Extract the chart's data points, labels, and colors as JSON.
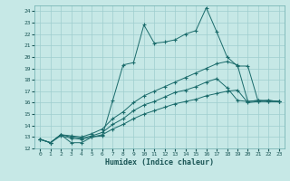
{
  "xlabel": "Humidex (Indice chaleur)",
  "xlim": [
    -0.5,
    23.5
  ],
  "ylim": [
    12,
    24.5
  ],
  "xticks": [
    0,
    1,
    2,
    3,
    4,
    5,
    6,
    7,
    8,
    9,
    10,
    11,
    12,
    13,
    14,
    15,
    16,
    17,
    18,
    19,
    20,
    21,
    22,
    23
  ],
  "yticks": [
    12,
    13,
    14,
    15,
    16,
    17,
    18,
    19,
    20,
    21,
    22,
    23,
    24
  ],
  "bg_color": "#c6e8e6",
  "line_color": "#1a6b6b",
  "grid_color": "#9ecece",
  "line1_x": [
    0,
    1,
    2,
    3,
    4,
    5,
    6,
    7,
    8,
    9,
    10,
    11,
    12,
    13,
    14,
    15,
    16,
    17,
    18,
    19,
    20,
    21,
    22,
    23
  ],
  "line1_y": [
    12.8,
    12.5,
    13.2,
    12.5,
    12.5,
    13.0,
    13.1,
    16.2,
    19.3,
    19.5,
    22.8,
    21.2,
    21.3,
    21.5,
    22.0,
    22.3,
    24.3,
    22.2,
    20.0,
    19.2,
    19.2,
    16.1,
    16.2,
    16.1
  ],
  "line2_x": [
    0,
    1,
    2,
    3,
    4,
    5,
    6,
    7,
    8,
    9,
    10,
    11,
    12,
    13,
    14,
    15,
    16,
    17,
    18,
    19,
    20,
    21,
    22,
    23
  ],
  "line2_y": [
    12.8,
    12.5,
    13.2,
    13.1,
    13.0,
    13.3,
    13.7,
    14.6,
    15.2,
    16.0,
    16.6,
    17.0,
    17.4,
    17.8,
    18.2,
    18.6,
    19.0,
    19.4,
    19.6,
    19.3,
    16.1,
    16.2,
    16.2,
    16.1
  ],
  "line3_x": [
    0,
    1,
    2,
    3,
    4,
    5,
    6,
    7,
    8,
    9,
    10,
    11,
    12,
    13,
    14,
    15,
    16,
    17,
    18,
    19,
    20,
    21,
    22,
    23
  ],
  "line3_y": [
    12.8,
    12.5,
    13.1,
    12.9,
    12.8,
    13.0,
    13.2,
    13.7,
    14.1,
    14.6,
    15.0,
    15.3,
    15.6,
    15.9,
    16.1,
    16.3,
    16.6,
    16.8,
    17.0,
    17.1,
    16.0,
    16.1,
    16.1,
    16.1
  ],
  "line4_x": [
    0,
    1,
    2,
    3,
    4,
    5,
    6,
    7,
    8,
    9,
    10,
    11,
    12,
    13,
    14,
    15,
    16,
    17,
    18,
    19,
    20,
    21,
    22,
    23
  ],
  "line4_y": [
    12.8,
    12.5,
    13.2,
    13.0,
    12.9,
    13.1,
    13.4,
    14.1,
    14.6,
    15.3,
    15.8,
    16.1,
    16.5,
    16.9,
    17.1,
    17.4,
    17.8,
    18.1,
    17.3,
    16.2,
    16.1,
    16.2,
    16.1,
    16.1
  ]
}
